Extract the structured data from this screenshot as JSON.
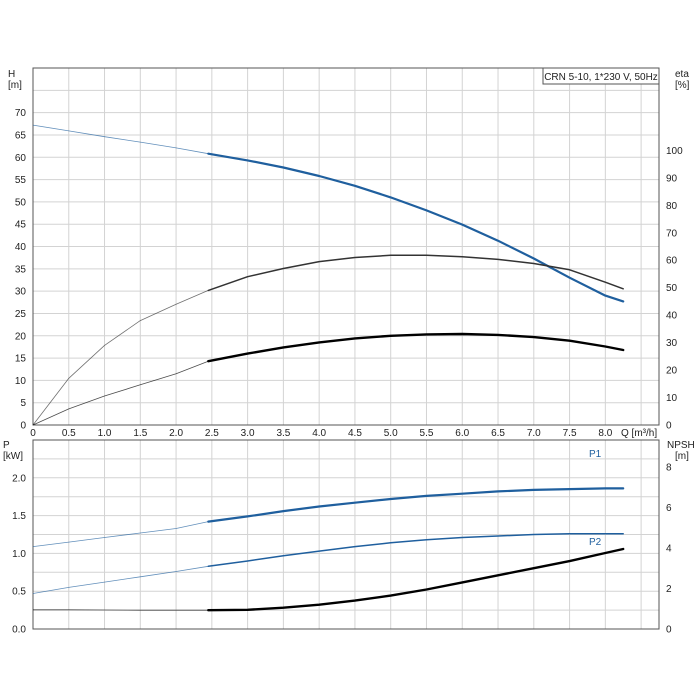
{
  "title_box": "CRN 5-10, 1*230 V, 50Hz",
  "colors": {
    "head": "#1f5f9e",
    "eta": "#333333",
    "p1": "#1f5f9e",
    "p2": "#1f5f9e",
    "npsh": "#000000",
    "grid": "#d3d3d3"
  },
  "chart_data": [
    {
      "type": "line",
      "title": "CRN 5-10, 1*230 V, 50Hz",
      "xlabel": "Q [m³/h]",
      "ylabel": "H\n[m]",
      "ylabel_right": "eta\n[%]",
      "xlim": [
        0,
        8.75
      ],
      "ylim": [
        0,
        80
      ],
      "ylim_right": [
        0,
        130
      ],
      "x_ticks": [
        "0",
        "0.5",
        "1.0",
        "1.5",
        "2.0",
        "2.5",
        "3.0",
        "3.5",
        "4.0",
        "4.5",
        "5.0",
        "5.5",
        "6.0",
        "6.5",
        "7.0",
        "7.5",
        "8.0"
      ],
      "y_ticks": [
        "0",
        "5",
        "10",
        "15",
        "20",
        "25",
        "30",
        "35",
        "40",
        "45",
        "50",
        "55",
        "60",
        "65",
        "70"
      ],
      "y_ticks_right": [
        "0",
        "10",
        "20",
        "30",
        "40",
        "50",
        "60",
        "70",
        "80",
        "90",
        "100"
      ],
      "grid": true,
      "series": [
        {
          "axis": "left",
          "role": "head",
          "x": [
            0,
            0.5,
            1.0,
            1.5,
            2.0,
            2.45,
            3.0,
            3.5,
            4.0,
            4.5,
            5.0,
            5.5,
            6.0,
            6.5,
            7.0,
            7.5,
            8.0,
            8.25
          ],
          "y": [
            67.2,
            65.9,
            64.6,
            63.4,
            62.1,
            60.8,
            59.3,
            57.7,
            55.8,
            53.6,
            51.0,
            48.1,
            44.9,
            41.3,
            37.3,
            33.0,
            29.0,
            27.7
          ]
        },
        {
          "axis": "right",
          "role": "eta",
          "x": [
            0,
            0.5,
            1.0,
            1.5,
            2.0,
            2.45,
            3.0,
            3.5,
            4.0,
            4.5,
            5.0,
            5.5,
            6.0,
            6.5,
            7.0,
            7.5,
            8.0,
            8.25
          ],
          "y": [
            0,
            17,
            29,
            38,
            44,
            49,
            54,
            57,
            59.5,
            61,
            61.8,
            61.8,
            61.3,
            60.3,
            58.8,
            56.5,
            52,
            49.6
          ]
        },
        {
          "axis": "left",
          "role": "eta_np",
          "x": [
            0,
            0.5,
            1.0,
            1.5,
            2.0,
            2.45,
            3.0,
            3.5,
            4.0,
            4.5,
            5.0,
            5.5,
            6.0,
            6.5,
            7.0,
            7.5,
            8.0,
            8.25
          ],
          "y": [
            0,
            3.6,
            6.5,
            9.0,
            11.5,
            14.3,
            16.0,
            17.4,
            18.5,
            19.4,
            20.0,
            20.3,
            20.4,
            20.2,
            19.7,
            18.9,
            17.6,
            16.8
          ]
        }
      ]
    },
    {
      "type": "line",
      "xlabel": "",
      "ylabel": "P\n[kW]",
      "ylabel_right": "NPSH\n[m]",
      "xlim": [
        0,
        8.75
      ],
      "ylim": [
        0,
        2.5
      ],
      "ylim_right": [
        0,
        9.33
      ],
      "y_ticks": [
        "0.0",
        "0.5",
        "1.0",
        "1.5",
        "2.0"
      ],
      "y_ticks_right": [
        "0",
        "2",
        "4",
        "6",
        "8"
      ],
      "grid": true,
      "series": [
        {
          "name": "P1",
          "axis": "left",
          "x": [
            0,
            0.5,
            1.0,
            1.5,
            2.0,
            2.45,
            3.0,
            3.5,
            4.0,
            4.5,
            5.0,
            5.5,
            6.0,
            6.5,
            7.0,
            7.5,
            8.0,
            8.25
          ],
          "y": [
            1.09,
            1.15,
            1.21,
            1.27,
            1.33,
            1.42,
            1.49,
            1.56,
            1.62,
            1.67,
            1.72,
            1.76,
            1.79,
            1.82,
            1.84,
            1.85,
            1.86,
            1.86
          ]
        },
        {
          "name": "P2",
          "axis": "left",
          "x": [
            0,
            0.5,
            1.0,
            1.5,
            2.0,
            2.45,
            3.0,
            3.5,
            4.0,
            4.5,
            5.0,
            5.5,
            6.0,
            6.5,
            7.0,
            7.5,
            8.0,
            8.25
          ],
          "y": [
            0.47,
            0.55,
            0.62,
            0.69,
            0.76,
            0.83,
            0.9,
            0.97,
            1.03,
            1.09,
            1.14,
            1.18,
            1.21,
            1.23,
            1.25,
            1.26,
            1.26,
            1.26
          ]
        },
        {
          "name": "",
          "axis": "right",
          "role": "npsh",
          "x": [
            0,
            0.5,
            1.0,
            1.5,
            2.0,
            2.45,
            3.0,
            3.5,
            4.0,
            4.5,
            5.0,
            5.5,
            6.0,
            6.5,
            7.0,
            7.5,
            8.0,
            8.25
          ],
          "y": [
            0.95,
            0.95,
            0.94,
            0.93,
            0.93,
            0.93,
            0.95,
            1.05,
            1.2,
            1.4,
            1.65,
            1.95,
            2.3,
            2.65,
            3.0,
            3.35,
            3.75,
            3.95
          ]
        }
      ]
    }
  ]
}
